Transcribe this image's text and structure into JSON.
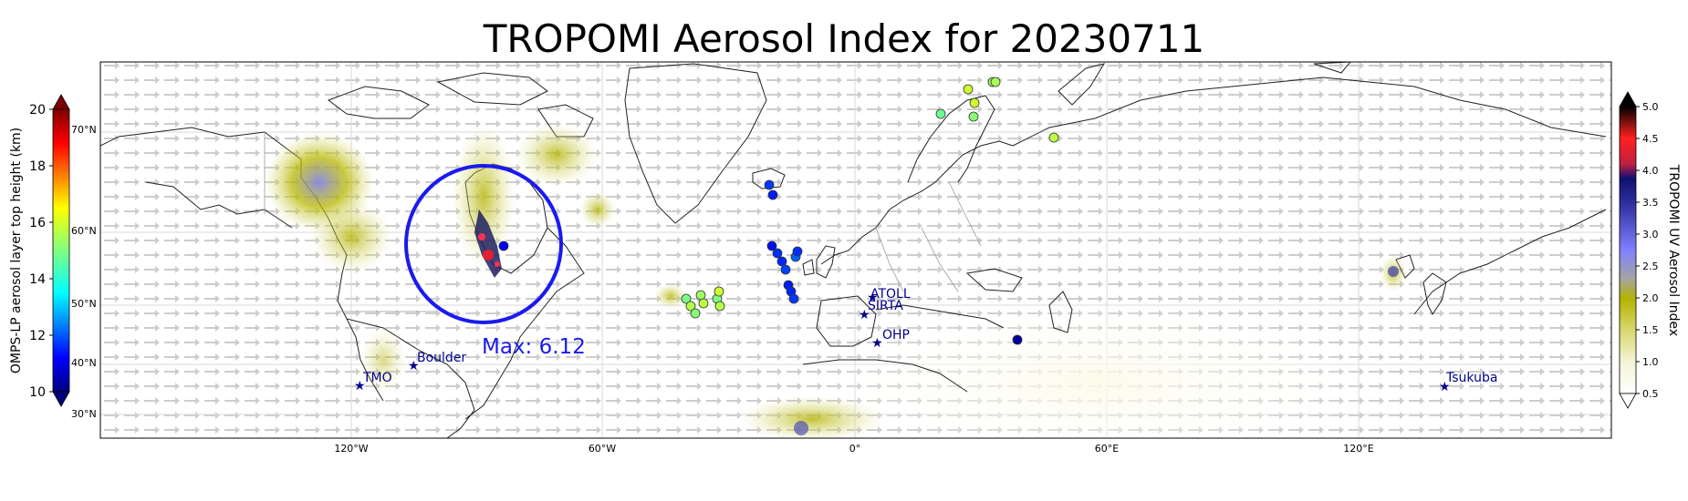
{
  "title": "TROPOMI Aerosol Index for 20230711",
  "max_label": "Max: 6.12",
  "colors": {
    "circle": "#1a1af0",
    "max_text": "#1a1af0",
    "site_marker": "#006400",
    "site_label": "#00008b"
  },
  "map": {
    "lon_ticks": [
      "120°W",
      "60°W",
      "0°",
      "60°E",
      "120°E"
    ],
    "lat_ticks_on_left_bar": [
      "70°N",
      "60°N",
      "50°N",
      "40°N",
      "30°N"
    ]
  },
  "sites": [
    {
      "name": "ATOLL"
    },
    {
      "name": "SIRTA"
    },
    {
      "name": "OHP"
    },
    {
      "name": "Boulder"
    },
    {
      "name": "TMO"
    },
    {
      "name": "Tsukuba"
    }
  ],
  "left_colorbar": {
    "label": "OMPS-LP aerosol layer top height (km)",
    "ticks": [
      "20",
      "18",
      "16",
      "14",
      "12",
      "10"
    ],
    "min": 10,
    "max": 20
  },
  "right_colorbar": {
    "label": "TROPOMI UV Aerosol Index",
    "ticks": [
      "5.0",
      "4.5",
      "4.0",
      "3.5",
      "3.0",
      "2.5",
      "2.0",
      "1.5",
      "1.0",
      "0.5"
    ],
    "min": 0.5,
    "max": 5.0
  },
  "omps_points": [
    {
      "height": 15.8
    },
    {
      "height": 15.3
    },
    {
      "height": 15.8
    },
    {
      "height": 14.8
    },
    {
      "height": 15.1
    },
    {
      "height": 15.6
    },
    {
      "height": 15.4
    },
    {
      "height": 11.8
    },
    {
      "height": 11.5
    },
    {
      "height": 11.4
    },
    {
      "height": 11.7
    },
    {
      "height": 11.6
    },
    {
      "height": 11.9
    },
    {
      "height": 12.2
    },
    {
      "height": 11.7
    },
    {
      "height": 11.5
    },
    {
      "height": 11.6
    },
    {
      "height": 11.8
    },
    {
      "height": 14.9
    },
    {
      "height": 15.5
    },
    {
      "height": 15.1
    },
    {
      "height": 15.3
    },
    {
      "height": 15.6
    },
    {
      "height": 15.0
    },
    {
      "height": 15.8
    },
    {
      "height": 15.5
    },
    {
      "height": 11.2
    },
    {
      "height": 10.3
    }
  ]
}
